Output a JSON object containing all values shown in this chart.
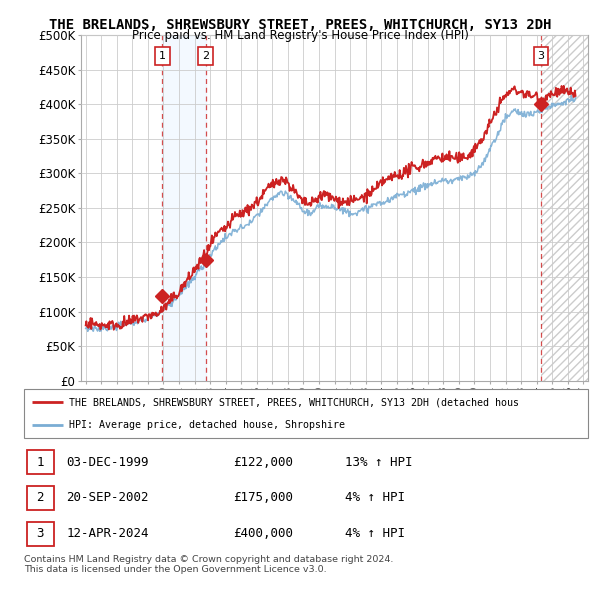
{
  "title": "THE BRELANDS, SHREWSBURY STREET, PREES, WHITCHURCH, SY13 2DH",
  "subtitle": "Price paid vs. HM Land Registry's House Price Index (HPI)",
  "ylabel_ticks": [
    "£0",
    "£50K",
    "£100K",
    "£150K",
    "£200K",
    "£250K",
    "£300K",
    "£350K",
    "£400K",
    "£450K",
    "£500K"
  ],
  "ytick_values": [
    0,
    50000,
    100000,
    150000,
    200000,
    250000,
    300000,
    350000,
    400000,
    450000,
    500000
  ],
  "ylim": [
    0,
    500000
  ],
  "xlim_start": 1994.7,
  "xlim_end": 2027.3,
  "xticks": [
    1995,
    1996,
    1997,
    1998,
    1999,
    2000,
    2001,
    2002,
    2003,
    2004,
    2005,
    2006,
    2007,
    2008,
    2009,
    2010,
    2011,
    2012,
    2013,
    2014,
    2015,
    2016,
    2017,
    2018,
    2019,
    2020,
    2021,
    2022,
    2023,
    2024,
    2025,
    2026,
    2027
  ],
  "hpi_color": "#7aadd4",
  "price_color": "#cc2222",
  "annotation_color": "#cc2222",
  "grid_color": "#cccccc",
  "bg_color": "#ffffff",
  "highlight_box1_color": "#ddeeff",
  "sale1_date": 1999.92,
  "sale1_price": 122000,
  "sale1_label": "1",
  "sale2_date": 2002.72,
  "sale2_price": 175000,
  "sale2_label": "2",
  "sale3_date": 2024.28,
  "sale3_price": 400000,
  "sale3_label": "3",
  "legend_line1": "THE BRELANDS, SHREWSBURY STREET, PREES, WHITCHURCH, SY13 2DH (detached hous",
  "legend_line2": "HPI: Average price, detached house, Shropshire",
  "table_rows": [
    {
      "num": "1",
      "date": "03-DEC-1999",
      "price": "£122,000",
      "hpi": "13% ↑ HPI"
    },
    {
      "num": "2",
      "date": "20-SEP-2002",
      "price": "£175,000",
      "hpi": "4% ↑ HPI"
    },
    {
      "num": "3",
      "date": "12-APR-2024",
      "price": "£400,000",
      "hpi": "4% ↑ HPI"
    }
  ],
  "footnote1": "Contains HM Land Registry data © Crown copyright and database right 2024.",
  "footnote2": "This data is licensed under the Open Government Licence v3.0."
}
